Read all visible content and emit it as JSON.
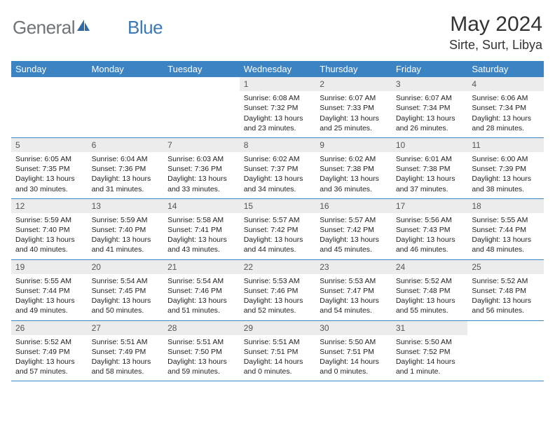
{
  "brand": {
    "part1": "General",
    "part2": "Blue"
  },
  "title": "May 2024",
  "location": "Sirte, Surt, Libya",
  "colors": {
    "header_bg": "#3c83c4",
    "daynum_bg": "#ececec",
    "border": "#3c83c4",
    "logo_gray": "#6d747a",
    "logo_blue": "#3c79b4",
    "text": "#222222",
    "page_bg": "#ffffff"
  },
  "weekdays": [
    "Sunday",
    "Monday",
    "Tuesday",
    "Wednesday",
    "Thursday",
    "Friday",
    "Saturday"
  ],
  "weeks": [
    [
      null,
      null,
      null,
      {
        "d": "1",
        "sr": "6:08 AM",
        "ss": "7:32 PM",
        "dl": "13 hours and 23 minutes."
      },
      {
        "d": "2",
        "sr": "6:07 AM",
        "ss": "7:33 PM",
        "dl": "13 hours and 25 minutes."
      },
      {
        "d": "3",
        "sr": "6:07 AM",
        "ss": "7:34 PM",
        "dl": "13 hours and 26 minutes."
      },
      {
        "d": "4",
        "sr": "6:06 AM",
        "ss": "7:34 PM",
        "dl": "13 hours and 28 minutes."
      }
    ],
    [
      {
        "d": "5",
        "sr": "6:05 AM",
        "ss": "7:35 PM",
        "dl": "13 hours and 30 minutes."
      },
      {
        "d": "6",
        "sr": "6:04 AM",
        "ss": "7:36 PM",
        "dl": "13 hours and 31 minutes."
      },
      {
        "d": "7",
        "sr": "6:03 AM",
        "ss": "7:36 PM",
        "dl": "13 hours and 33 minutes."
      },
      {
        "d": "8",
        "sr": "6:02 AM",
        "ss": "7:37 PM",
        "dl": "13 hours and 34 minutes."
      },
      {
        "d": "9",
        "sr": "6:02 AM",
        "ss": "7:38 PM",
        "dl": "13 hours and 36 minutes."
      },
      {
        "d": "10",
        "sr": "6:01 AM",
        "ss": "7:38 PM",
        "dl": "13 hours and 37 minutes."
      },
      {
        "d": "11",
        "sr": "6:00 AM",
        "ss": "7:39 PM",
        "dl": "13 hours and 38 minutes."
      }
    ],
    [
      {
        "d": "12",
        "sr": "5:59 AM",
        "ss": "7:40 PM",
        "dl": "13 hours and 40 minutes."
      },
      {
        "d": "13",
        "sr": "5:59 AM",
        "ss": "7:40 PM",
        "dl": "13 hours and 41 minutes."
      },
      {
        "d": "14",
        "sr": "5:58 AM",
        "ss": "7:41 PM",
        "dl": "13 hours and 43 minutes."
      },
      {
        "d": "15",
        "sr": "5:57 AM",
        "ss": "7:42 PM",
        "dl": "13 hours and 44 minutes."
      },
      {
        "d": "16",
        "sr": "5:57 AM",
        "ss": "7:42 PM",
        "dl": "13 hours and 45 minutes."
      },
      {
        "d": "17",
        "sr": "5:56 AM",
        "ss": "7:43 PM",
        "dl": "13 hours and 46 minutes."
      },
      {
        "d": "18",
        "sr": "5:55 AM",
        "ss": "7:44 PM",
        "dl": "13 hours and 48 minutes."
      }
    ],
    [
      {
        "d": "19",
        "sr": "5:55 AM",
        "ss": "7:44 PM",
        "dl": "13 hours and 49 minutes."
      },
      {
        "d": "20",
        "sr": "5:54 AM",
        "ss": "7:45 PM",
        "dl": "13 hours and 50 minutes."
      },
      {
        "d": "21",
        "sr": "5:54 AM",
        "ss": "7:46 PM",
        "dl": "13 hours and 51 minutes."
      },
      {
        "d": "22",
        "sr": "5:53 AM",
        "ss": "7:46 PM",
        "dl": "13 hours and 52 minutes."
      },
      {
        "d": "23",
        "sr": "5:53 AM",
        "ss": "7:47 PM",
        "dl": "13 hours and 54 minutes."
      },
      {
        "d": "24",
        "sr": "5:52 AM",
        "ss": "7:48 PM",
        "dl": "13 hours and 55 minutes."
      },
      {
        "d": "25",
        "sr": "5:52 AM",
        "ss": "7:48 PM",
        "dl": "13 hours and 56 minutes."
      }
    ],
    [
      {
        "d": "26",
        "sr": "5:52 AM",
        "ss": "7:49 PM",
        "dl": "13 hours and 57 minutes."
      },
      {
        "d": "27",
        "sr": "5:51 AM",
        "ss": "7:49 PM",
        "dl": "13 hours and 58 minutes."
      },
      {
        "d": "28",
        "sr": "5:51 AM",
        "ss": "7:50 PM",
        "dl": "13 hours and 59 minutes."
      },
      {
        "d": "29",
        "sr": "5:51 AM",
        "ss": "7:51 PM",
        "dl": "14 hours and 0 minutes."
      },
      {
        "d": "30",
        "sr": "5:50 AM",
        "ss": "7:51 PM",
        "dl": "14 hours and 0 minutes."
      },
      {
        "d": "31",
        "sr": "5:50 AM",
        "ss": "7:52 PM",
        "dl": "14 hours and 1 minute."
      },
      null
    ]
  ],
  "labels": {
    "sunrise": "Sunrise:",
    "sunset": "Sunset:",
    "daylight": "Daylight:"
  }
}
